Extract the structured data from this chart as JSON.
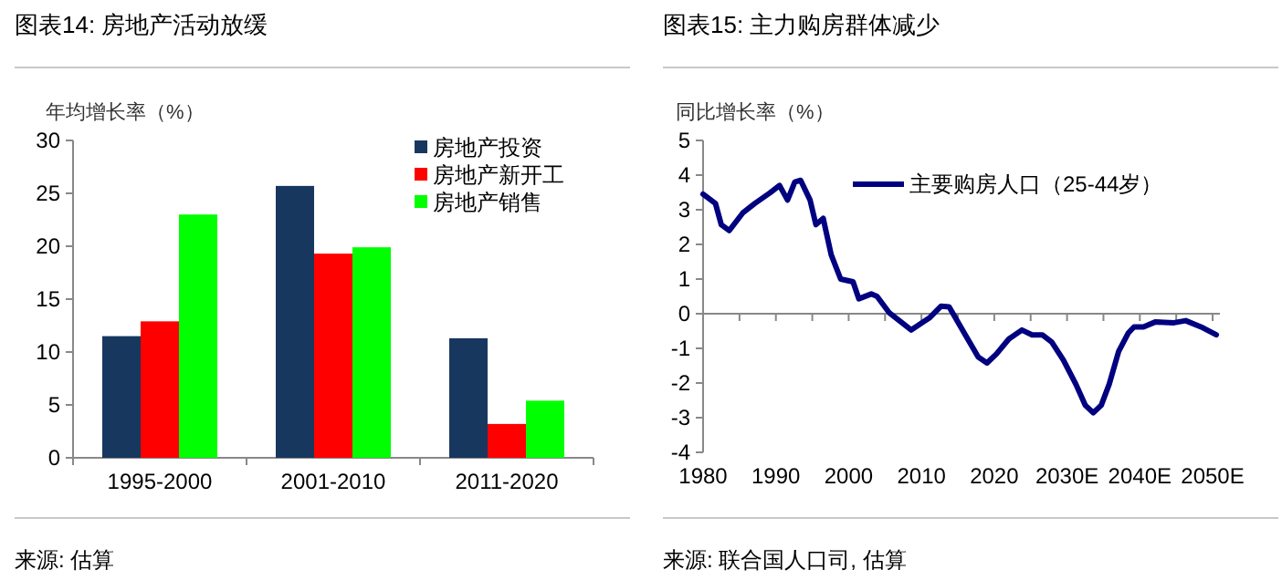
{
  "chart_data": [
    {
      "type": "bar",
      "title": "图表14: 房地产活动放缓",
      "ylabel": "年均增长率（%）",
      "categories": [
        "1995-2000",
        "2001-2010",
        "2011-2020"
      ],
      "series": [
        {
          "name": "房地产投资",
          "color": "#17375e",
          "values": [
            11.5,
            25.7,
            11.3
          ]
        },
        {
          "name": "房地产新开工",
          "color": "#ff0000",
          "values": [
            12.9,
            19.3,
            3.2
          ]
        },
        {
          "name": "房地产销售",
          "color": "#00ff00",
          "values": [
            23,
            19.9,
            5.4
          ]
        }
      ],
      "ylim": [
        0,
        30
      ],
      "yticks": [
        0,
        5,
        10,
        15,
        20,
        25,
        30
      ],
      "grid": false,
      "legend": "top right",
      "annotations": [
        "来源: 估算"
      ]
    },
    {
      "type": "line",
      "title": "图表15: 主力购房群体减少",
      "ylabel": "同比增长率（%）",
      "series": [
        {
          "name": "主要购房人口（25-44岁）",
          "color": "#000080",
          "x": [
            1980,
            1981.7,
            1982.5,
            1983.6,
            1985.5,
            1987.1,
            1989.2,
            1990.5,
            1991.6,
            1992.6,
            1993.4,
            1994.7,
            1995.5,
            1996.5,
            1997.6,
            1998.9,
            2000.6,
            2001.4,
            2003.1,
            2003.9,
            2005.6,
            2008.6,
            2011.1,
            2012.7,
            2013.8,
            2016.1,
            2017.8,
            2019,
            2020.3,
            2022,
            2023.8,
            2025.2,
            2026.6,
            2027.9,
            2029.5,
            2031.2,
            2032.5,
            2033.6,
            2034.7,
            2035.8,
            2037.1,
            2038.4,
            2039.2,
            2040.5,
            2042.1,
            2044.7,
            2046.3,
            2048.4,
            2050.5
          ],
          "values": [
            3.45,
            3.18,
            2.57,
            2.4,
            2.92,
            3.18,
            3.49,
            3.7,
            3.28,
            3.8,
            3.85,
            3.28,
            2.57,
            2.75,
            1.7,
            1.0,
            0.92,
            0.43,
            0.57,
            0.5,
            0.02,
            -0.47,
            -0.12,
            0.22,
            0.2,
            -0.64,
            -1.25,
            -1.42,
            -1.16,
            -0.73,
            -0.47,
            -0.61,
            -0.61,
            -0.82,
            -1.34,
            -2.03,
            -2.64,
            -2.86,
            -2.64,
            -2.03,
            -1.08,
            -0.56,
            -0.38,
            -0.38,
            -0.24,
            -0.26,
            -0.2,
            -0.38,
            -0.61
          ]
        }
      ],
      "xlim": [
        1980,
        2051
      ],
      "xticks": [
        1980,
        {
          "value": 1985,
          "label": null
        },
        1990,
        {
          "value": 1995,
          "label": null
        },
        2000,
        {
          "value": 2005,
          "label": null
        },
        2010,
        {
          "value": 2015,
          "label": null
        },
        2020,
        {
          "value": 2025,
          "label": null
        },
        {
          "value": 2030,
          "label": "2030E"
        },
        {
          "value": 2035,
          "label": null
        },
        {
          "value": 2040,
          "label": "2040E"
        },
        {
          "value": 2045,
          "label": null
        },
        {
          "value": 2050,
          "label": "2050E"
        }
      ],
      "ylim": [
        -4,
        5
      ],
      "yticks": [
        -4,
        -3,
        -2,
        -1,
        0,
        1,
        2,
        3,
        4,
        5
      ],
      "legend": "top",
      "annotations": [
        "来源: 联合国人口司, 估算"
      ]
    }
  ]
}
